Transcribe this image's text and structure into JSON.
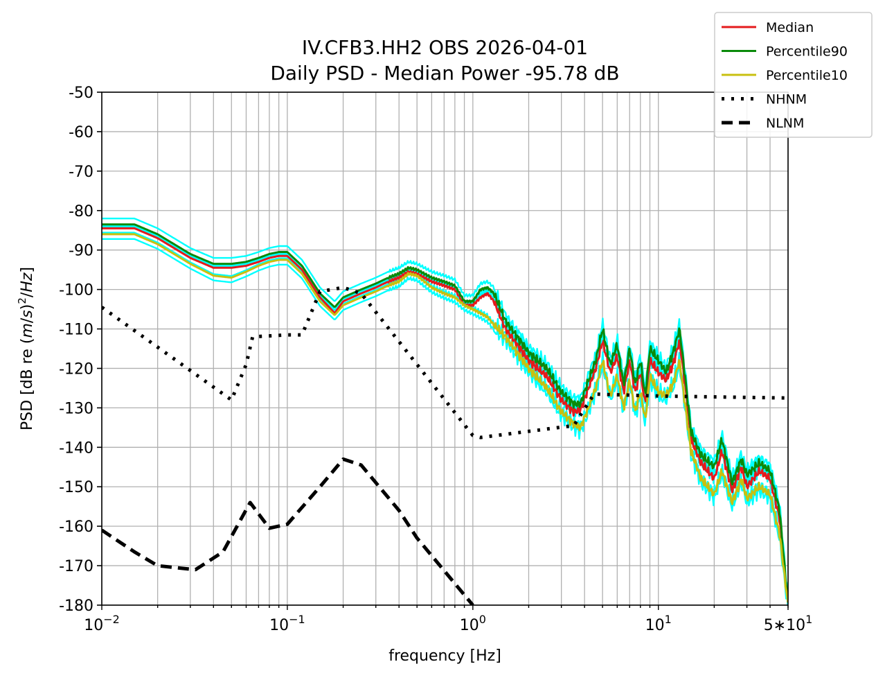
{
  "chart_data": {
    "type": "line",
    "title": [
      "IV.CFB3.HH2 OBS 2026-04-01",
      "Daily PSD - Median Power -95.78 dB"
    ],
    "xlabel": "frequency [Hz]",
    "ylabel": "PSD [dB re (m/s)²/Hz]",
    "x_scale": "log",
    "xlim": [
      0.01,
      50
    ],
    "ylim": [
      -180,
      -50
    ],
    "x_ticks": [
      {
        "value": 0.01,
        "base": "10",
        "exp": "−2"
      },
      {
        "value": 0.1,
        "base": "10",
        "exp": "−1"
      },
      {
        "value": 1,
        "base": "10",
        "exp": "0"
      },
      {
        "value": 10,
        "base": "10",
        "exp": "1"
      },
      {
        "value": 50,
        "base": "5∗10",
        "exp": "1"
      }
    ],
    "y_ticks": [
      -50,
      -60,
      -70,
      -80,
      -90,
      -100,
      -110,
      -120,
      -130,
      -140,
      -150,
      -160,
      -170,
      -180
    ],
    "grid": true,
    "legend_position": "top-right",
    "colors": {
      "median": "#e41a1c",
      "p90": "#0a8a0a",
      "p10": "#c8c010",
      "hourly": "#00ffff",
      "model": "#000000"
    },
    "series": [
      {
        "name": "Median",
        "color": "#e41a1c",
        "style": "solid",
        "x": [
          0.01,
          0.015,
          0.02,
          0.03,
          0.04,
          0.05,
          0.06,
          0.07,
          0.08,
          0.09,
          0.1,
          0.12,
          0.15,
          0.18,
          0.2,
          0.25,
          0.3,
          0.35,
          0.4,
          0.45,
          0.5,
          0.6,
          0.7,
          0.8,
          0.9,
          1.0,
          1.1,
          1.2,
          1.3,
          1.5,
          1.8,
          2.0,
          2.5,
          3.0,
          3.5,
          3.8,
          4.2,
          4.6,
          5.0,
          5.5,
          6.0,
          6.5,
          7.0,
          7.5,
          8.0,
          8.5,
          9.0,
          10,
          11,
          12,
          13,
          14,
          15,
          17,
          20,
          22,
          25,
          28,
          30,
          35,
          40,
          45,
          50
        ],
        "y": [
          -84.5,
          -84.5,
          -87,
          -92,
          -94.5,
          -94.5,
          -94,
          -93,
          -92,
          -91.5,
          -91.5,
          -95,
          -102,
          -106,
          -103,
          -101,
          -99.5,
          -98,
          -97,
          -95.5,
          -96,
          -98,
          -99,
          -100,
          -104,
          -104,
          -102,
          -101,
          -103,
          -110,
          -115,
          -118,
          -122,
          -128,
          -131,
          -130.5,
          -125,
          -120,
          -113,
          -121,
          -117,
          -126,
          -118,
          -126,
          -121,
          -129,
          -118,
          -121,
          -123,
          -119,
          -113,
          -125,
          -138,
          -144,
          -148,
          -141,
          -151,
          -145,
          -150,
          -146,
          -148,
          -158,
          -180
        ]
      },
      {
        "name": "Percentile90",
        "color": "#0a8a0a",
        "style": "solid",
        "x": [
          0.01,
          0.015,
          0.02,
          0.03,
          0.04,
          0.05,
          0.06,
          0.07,
          0.08,
          0.09,
          0.1,
          0.12,
          0.15,
          0.18,
          0.2,
          0.25,
          0.3,
          0.35,
          0.4,
          0.45,
          0.5,
          0.6,
          0.7,
          0.8,
          0.9,
          1.0,
          1.1,
          1.2,
          1.3,
          1.5,
          1.8,
          2.0,
          2.5,
          3.0,
          3.5,
          3.8,
          4.2,
          4.6,
          5.0,
          5.5,
          6.0,
          6.5,
          7.0,
          7.5,
          8.0,
          8.5,
          9.0,
          10,
          11,
          12,
          13,
          14,
          15,
          17,
          20,
          22,
          25,
          28,
          30,
          35,
          40,
          45,
          50
        ],
        "y": [
          -83.5,
          -83.5,
          -86,
          -91,
          -93.5,
          -93.5,
          -93,
          -92,
          -91,
          -90.5,
          -90.5,
          -94,
          -101,
          -104.5,
          -102,
          -100,
          -98.5,
          -97,
          -96,
          -94.5,
          -95,
          -97,
          -98,
          -99,
          -103,
          -103,
          -100,
          -99.5,
          -101,
          -108,
          -113,
          -116,
          -120,
          -126,
          -129,
          -129,
          -123,
          -118,
          -110,
          -119,
          -114,
          -124,
          -115,
          -124,
          -118,
          -127,
          -115,
          -118,
          -121,
          -116,
          -110,
          -123,
          -136,
          -142,
          -145,
          -138,
          -149,
          -143,
          -147,
          -144,
          -146,
          -156,
          -180
        ]
      },
      {
        "name": "Percentile10",
        "color": "#c8c010",
        "style": "solid",
        "x": [
          0.01,
          0.015,
          0.02,
          0.03,
          0.04,
          0.05,
          0.06,
          0.07,
          0.08,
          0.09,
          0.1,
          0.12,
          0.15,
          0.18,
          0.2,
          0.25,
          0.3,
          0.35,
          0.4,
          0.45,
          0.5,
          0.6,
          0.7,
          0.8,
          0.9,
          1.0,
          1.1,
          1.2,
          1.3,
          1.5,
          1.8,
          2.0,
          2.5,
          3.0,
          3.5,
          3.8,
          4.2,
          4.6,
          5.0,
          5.5,
          6.0,
          6.5,
          7.0,
          7.5,
          8.0,
          8.5,
          9.0,
          10,
          11,
          12,
          13,
          14,
          15,
          17,
          20,
          22,
          25,
          28,
          30,
          35,
          40,
          45,
          50
        ],
        "y": [
          -86,
          -86,
          -88.5,
          -93.5,
          -96.5,
          -97,
          -95.5,
          -94,
          -93,
          -92.5,
          -92.5,
          -96,
          -103,
          -106.5,
          -104,
          -102,
          -100.5,
          -99,
          -98,
          -96,
          -96.5,
          -99.5,
          -101,
          -102,
          -104,
          -105,
          -106,
          -107,
          -109,
          -112,
          -117,
          -120,
          -125,
          -131,
          -134,
          -135,
          -130,
          -125,
          -118,
          -127,
          -122,
          -130,
          -123,
          -131,
          -126,
          -133,
          -122,
          -126,
          -127,
          -124,
          -118,
          -130,
          -141,
          -148,
          -152,
          -146,
          -154,
          -148,
          -153,
          -150,
          -152,
          -162,
          -180
        ]
      },
      {
        "name": "NHNM",
        "color": "#000000",
        "style": "dotted",
        "x": [
          0.01,
          0.05,
          0.06,
          0.065,
          0.1,
          0.12,
          0.15,
          0.2,
          0.25,
          1.0,
          1.1,
          3.5,
          4.5,
          10,
          50
        ],
        "y": [
          -104.5,
          -128,
          -119,
          -112,
          -111.5,
          -111.5,
          -100.5,
          -99.5,
          -101,
          -137,
          -137.5,
          -134.5,
          -126.5,
          -127,
          -127.5
        ]
      },
      {
        "name": "NLNM",
        "color": "#000000",
        "style": "dashed",
        "x": [
          0.01,
          0.015,
          0.02,
          0.025,
          0.032,
          0.045,
          0.063,
          0.08,
          0.1,
          0.15,
          0.2,
          0.25,
          0.4,
          0.5,
          1.0
        ],
        "y": [
          -161,
          -166.5,
          -170,
          -170.5,
          -171,
          -166.5,
          -154,
          -160.5,
          -159.5,
          -150,
          -143,
          -144.5,
          -156,
          -163,
          -180
        ]
      }
    ]
  }
}
